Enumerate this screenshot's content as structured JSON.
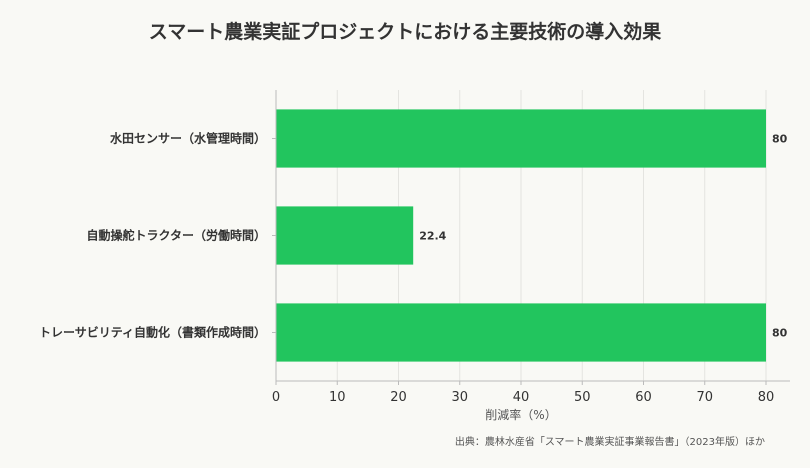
{
  "chart_data": {
    "type": "bar",
    "orientation": "horizontal",
    "title": "スマート農業実証プロジェクトにおける主要技術の導入効果",
    "categories": [
      "水田センサー（水管理時間）",
      "自動操舵トラクター（労働時間）",
      "トレーサビリティ自動化（書類作成時間）"
    ],
    "values": [
      80,
      22.4,
      80
    ],
    "value_labels": [
      "80",
      "22.4",
      "80"
    ],
    "xlabel": "削減率（%）",
    "xlim": [
      0,
      80
    ],
    "xticks": [
      0,
      10,
      20,
      30,
      40,
      50,
      60,
      70,
      80
    ],
    "grid": true,
    "bar_color": "#22c55e",
    "source": "出典：農林水産省「スマート農業実証事業報告書」（2023年版）ほか"
  }
}
